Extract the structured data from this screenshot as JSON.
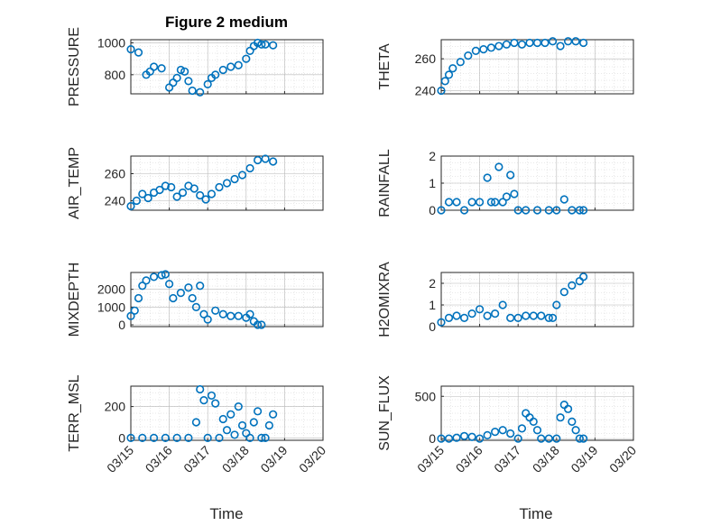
{
  "figure": {
    "title": "Figure 2 medium",
    "marker_color": "#0072BD",
    "xticks": [
      "03/15",
      "03/16",
      "03/17",
      "03/18",
      "03/19",
      "03/20"
    ],
    "xlabel": "Time"
  },
  "chart_data": [
    {
      "type": "scatter",
      "ylabel": "PRESSURE",
      "ylim": [
        680,
        1020
      ],
      "yticks": [
        800,
        1000
      ],
      "yticklabels": [
        "800",
        "1000"
      ],
      "x": [
        0,
        0.2,
        0.4,
        0.5,
        0.6,
        0.8,
        1.0,
        1.1,
        1.2,
        1.3,
        1.4,
        1.5,
        1.6,
        1.8,
        2.0,
        2.1,
        2.2,
        2.4,
        2.6,
        2.8,
        3.0,
        3.1,
        3.2,
        3.3,
        3.4,
        3.5,
        3.7
      ],
      "y": [
        960,
        940,
        800,
        820,
        850,
        840,
        720,
        750,
        780,
        830,
        820,
        760,
        700,
        690,
        740,
        780,
        800,
        830,
        850,
        860,
        900,
        950,
        980,
        1000,
        990,
        990,
        985
      ],
      "grid": true
    },
    {
      "type": "scatter",
      "ylabel": "THETA",
      "ylim": [
        238,
        272
      ],
      "yticks": [
        240,
        260
      ],
      "yticklabels": [
        "240",
        "260"
      ],
      "x": [
        0,
        0.1,
        0.2,
        0.3,
        0.5,
        0.7,
        0.9,
        1.1,
        1.3,
        1.5,
        1.7,
        1.9,
        2.1,
        2.3,
        2.5,
        2.7,
        2.9,
        3.1,
        3.3,
        3.5,
        3.7
      ],
      "y": [
        240,
        246,
        250,
        254,
        258,
        262,
        265,
        266,
        267,
        268,
        269,
        270,
        269,
        270,
        270,
        270,
        271,
        268,
        271,
        271,
        270
      ],
      "grid": true
    },
    {
      "type": "scatter",
      "ylabel": "AIR_TEMP",
      "ylim": [
        233,
        273
      ],
      "yticks": [
        240,
        260
      ],
      "yticklabels": [
        "240",
        "260"
      ],
      "x": [
        0,
        0.15,
        0.3,
        0.45,
        0.6,
        0.75,
        0.9,
        1.05,
        1.2,
        1.35,
        1.5,
        1.65,
        1.8,
        1.95,
        2.1,
        2.3,
        2.5,
        2.7,
        2.9,
        3.1,
        3.3,
        3.5,
        3.7
      ],
      "y": [
        236,
        240,
        245,
        242,
        246,
        248,
        251,
        250,
        243,
        246,
        251,
        249,
        244,
        241,
        245,
        250,
        253,
        256,
        259,
        264,
        270,
        271,
        269
      ],
      "grid": true
    },
    {
      "type": "scatter",
      "ylabel": "RAINFALL",
      "ylim": [
        0,
        2
      ],
      "yticks": [
        0,
        1,
        2
      ],
      "yticklabels": [
        "0",
        "1",
        "2"
      ],
      "x": [
        0,
        0.2,
        0.4,
        0.6,
        0.8,
        1.0,
        1.2,
        1.3,
        1.4,
        1.5,
        1.6,
        1.7,
        1.8,
        1.9,
        2.0,
        2.2,
        2.5,
        2.8,
        3.0,
        3.2,
        3.4,
        3.6,
        3.7
      ],
      "y": [
        0,
        0.3,
        0.3,
        0,
        0.3,
        0.3,
        1.2,
        0.3,
        0.3,
        1.6,
        0.3,
        0.5,
        1.3,
        0.6,
        0,
        0,
        0,
        0,
        0,
        0.4,
        0,
        0,
        0
      ],
      "grid": true
    },
    {
      "type": "scatter",
      "ylabel": "MIXDEPTH",
      "ylim": [
        -100,
        2950
      ],
      "yticks": [
        0,
        1000,
        2000
      ],
      "yticklabels": [
        "0",
        "1000",
        "2000"
      ],
      "x": [
        0,
        0.1,
        0.2,
        0.3,
        0.4,
        0.6,
        0.8,
        0.9,
        1.0,
        1.1,
        1.3,
        1.5,
        1.6,
        1.7,
        1.8,
        1.9,
        2.0,
        2.2,
        2.4,
        2.6,
        2.8,
        3.0,
        3.1,
        3.2,
        3.3,
        3.4
      ],
      "y": [
        500,
        800,
        1500,
        2200,
        2500,
        2700,
        2800,
        2850,
        2300,
        1500,
        1800,
        2100,
        1500,
        1000,
        2200,
        600,
        300,
        800,
        600,
        500,
        500,
        400,
        600,
        200,
        0,
        0
      ],
      "grid": true
    },
    {
      "type": "scatter",
      "ylabel": "H2OMIXRA",
      "ylim": [
        0,
        2.5
      ],
      "yticks": [
        0,
        1,
        2
      ],
      "yticklabels": [
        "0",
        "1",
        "2"
      ],
      "x": [
        0,
        0.2,
        0.4,
        0.6,
        0.8,
        1.0,
        1.2,
        1.4,
        1.6,
        1.8,
        2.0,
        2.2,
        2.4,
        2.6,
        2.8,
        2.9,
        3.0,
        3.2,
        3.4,
        3.6,
        3.7
      ],
      "y": [
        0.2,
        0.4,
        0.5,
        0.4,
        0.6,
        0.8,
        0.5,
        0.6,
        1.0,
        0.4,
        0.4,
        0.5,
        0.5,
        0.5,
        0.4,
        0.4,
        1.0,
        1.6,
        1.9,
        2.1,
        2.3
      ],
      "grid": true
    },
    {
      "type": "scatter",
      "ylabel": "TERR_MSL",
      "ylim": [
        -15,
        330
      ],
      "yticks": [
        0,
        200
      ],
      "yticklabels": [
        "0",
        "200"
      ],
      "x": [
        0,
        0.3,
        0.6,
        0.9,
        1.2,
        1.5,
        1.7,
        1.8,
        1.9,
        2.0,
        2.1,
        2.2,
        2.3,
        2.4,
        2.5,
        2.6,
        2.7,
        2.8,
        2.9,
        3.0,
        3.1,
        3.2,
        3.3,
        3.4,
        3.5,
        3.6,
        3.7
      ],
      "y": [
        0,
        0,
        0,
        0,
        0,
        0,
        100,
        310,
        240,
        0,
        270,
        220,
        0,
        120,
        50,
        150,
        20,
        200,
        80,
        30,
        0,
        100,
        170,
        0,
        0,
        80,
        150
      ],
      "grid": true
    },
    {
      "type": "scatter",
      "ylabel": "SUN_FLUX",
      "ylim": [
        -20,
        620
      ],
      "yticks": [
        0,
        500
      ],
      "yticklabels": [
        "0",
        "500"
      ],
      "x": [
        0,
        0.2,
        0.4,
        0.6,
        0.8,
        1.0,
        1.2,
        1.4,
        1.6,
        1.8,
        2.0,
        2.1,
        2.2,
        2.3,
        2.4,
        2.5,
        2.6,
        2.8,
        3.0,
        3.1,
        3.2,
        3.3,
        3.4,
        3.5,
        3.6,
        3.7
      ],
      "y": [
        0,
        0,
        10,
        30,
        20,
        0,
        40,
        80,
        100,
        60,
        0,
        120,
        300,
        250,
        200,
        100,
        0,
        0,
        0,
        250,
        400,
        350,
        200,
        100,
        0,
        0
      ],
      "grid": true
    }
  ]
}
